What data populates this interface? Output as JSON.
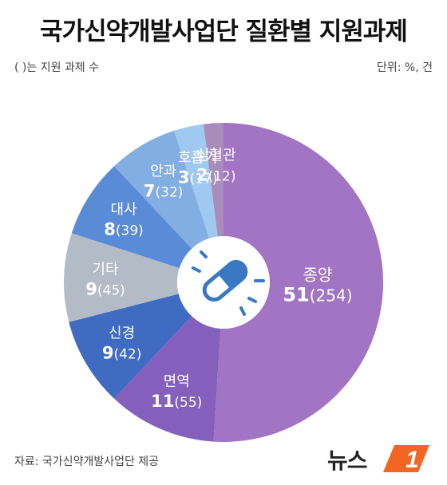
{
  "header": {
    "title": "국가신약개발사업단 질환별 지원과제",
    "note": "( )는 지원 과제 수",
    "unit": "단위: %, 건"
  },
  "footer": {
    "source": "자료: 국가신약개발사업단 제공",
    "logo_text": "뉴스",
    "logo_mark": "1"
  },
  "colors": {
    "종양": "#a274c4",
    "면역": "#8460bc",
    "신경": "#3f6bc2",
    "기타": "#b3bcc6",
    "대사": "#5a8bd6",
    "안과": "#83aee2",
    "호흡기": "#9fc9f0",
    "심혈관": "#a88cba",
    "center_icon": "#3a78c4",
    "logo_accent": "#f26522"
  },
  "chart_data": {
    "type": "pie",
    "title": "국가신약개발사업단 질환별 지원과제",
    "categories": [
      "종양",
      "면역",
      "신경",
      "기타",
      "대사",
      "안과",
      "호흡기",
      "심혈관"
    ],
    "values": [
      51,
      11,
      9,
      9,
      8,
      7,
      3,
      2
    ],
    "counts": [
      254,
      55,
      42,
      45,
      39,
      32,
      17,
      12
    ],
    "labels": [
      {
        "name": "종양",
        "value": "51",
        "count": "(254)"
      },
      {
        "name": "면역",
        "value": "11",
        "count": "(55)"
      },
      {
        "name": "신경",
        "value": "9",
        "count": "(42)"
      },
      {
        "name": "기타",
        "value": "9",
        "count": "(45)"
      },
      {
        "name": "대사",
        "value": "8",
        "count": "(39)"
      },
      {
        "name": "안과",
        "value": "7",
        "count": "(32)"
      },
      {
        "name": "호흡기",
        "value": "3",
        "count": "(17)"
      },
      {
        "name": "심혈관",
        "value": "2",
        "count": "(12)"
      }
    ],
    "center_icon": "pill-capsule-icon"
  }
}
